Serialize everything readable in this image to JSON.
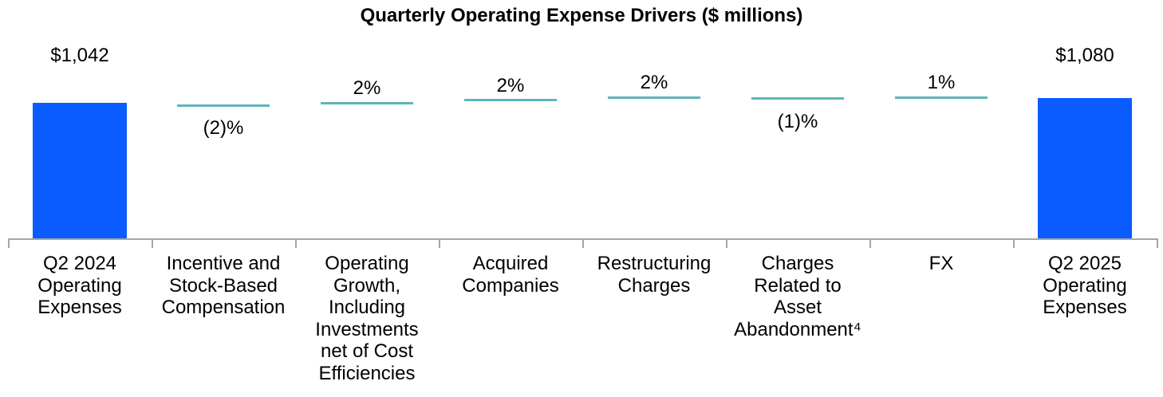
{
  "chart_data": {
    "type": "waterfall",
    "title": "Quarterly Operating Expense Drivers ($ millions)",
    "value_unit": "$ millions",
    "start_bar": {
      "category": "Q2 2024\nOperating\nExpenses",
      "value": 1042,
      "value_label": "$1,042"
    },
    "drivers": [
      {
        "category": "Incentive and\nStock-Based\nCompensation",
        "pct_change": -2,
        "pct_label": "(2)%",
        "label_position": "below"
      },
      {
        "category": "Operating\nGrowth,\nIncluding\nInvestments\nnet of Cost\nEfficiencies",
        "pct_change": 2,
        "pct_label": "2%",
        "label_position": "above"
      },
      {
        "category": "Acquired\nCompanies",
        "pct_change": 2,
        "pct_label": "2%",
        "label_position": "above"
      },
      {
        "category": "Restructuring\nCharges",
        "pct_change": 2,
        "pct_label": "2%",
        "label_position": "above"
      },
      {
        "category": "Charges\nRelated to\nAsset\nAbandonment⁴",
        "pct_change": -1,
        "pct_label": "(1)%",
        "label_position": "below"
      },
      {
        "category": "FX",
        "pct_change": 1,
        "pct_label": "1%",
        "label_position": "above"
      }
    ],
    "end_bar": {
      "category": "Q2 2025\nOperating\nExpenses",
      "value": 1080,
      "value_label": "$1,080"
    },
    "colors": {
      "bar_fill": "#0B5CFF",
      "connector": "#5FB5BA",
      "axis": "#A6A6A6",
      "text": "#000000"
    },
    "layout_hints": {
      "gridlines": false,
      "y_axis_visible": false,
      "value_labels_row_aligned": true,
      "tick_marks": "below-axis-at-category-boundaries"
    }
  }
}
